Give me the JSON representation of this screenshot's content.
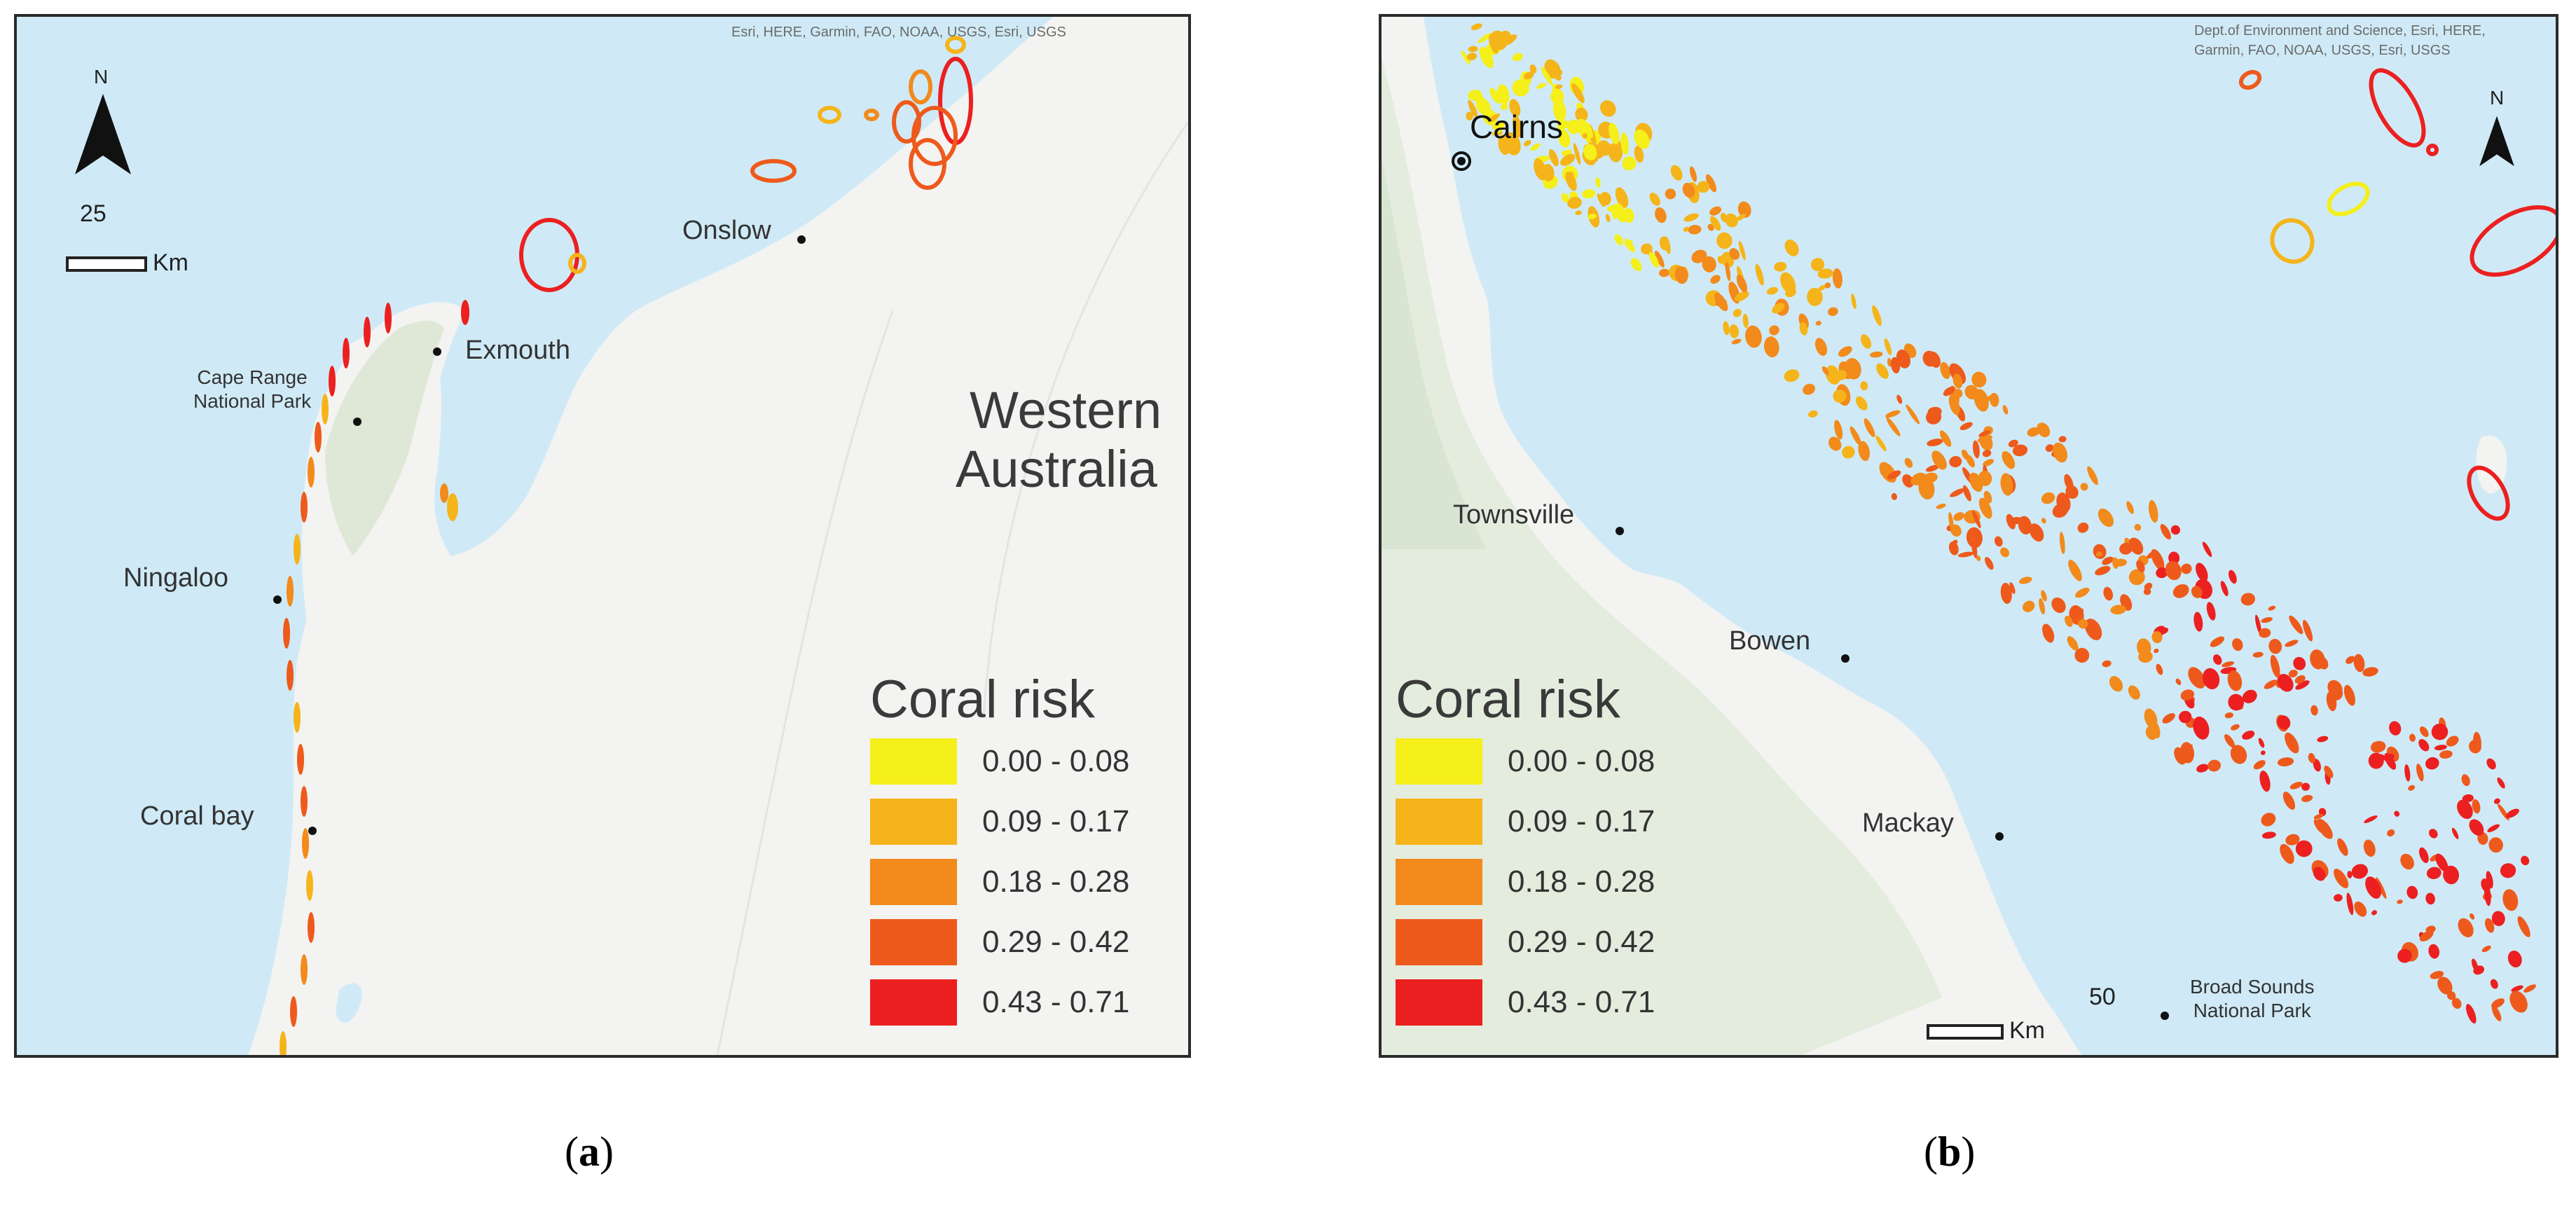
{
  "panel_a": {
    "attribution": "Esri, HERE, Garmin, FAO, NOAA, USGS, Esri, USGS",
    "north_label": "N",
    "scale": {
      "value": "25",
      "unit": "Km"
    },
    "places": {
      "onslow": "Onslow",
      "exmouth": "Exmouth",
      "cape_range_1": "Cape Range",
      "cape_range_2": "National Park",
      "ningaloo": "Ningaloo",
      "coral_bay": "Coral bay",
      "region_1": "Western",
      "region_2": "Australia"
    },
    "legend_title": "Coral risk",
    "caption_letter": "a"
  },
  "panel_b": {
    "attribution_1": "Dept.of Environment and Science, Esri, HERE,",
    "attribution_2": "Garmin, FAO, NOAA, USGS, Esri, USGS",
    "north_label": "N",
    "scale": {
      "value": "50",
      "unit": "Km"
    },
    "places": {
      "cairns": "Cairns",
      "townsville": "Townsville",
      "bowen": "Bowen",
      "mackay": "Mackay",
      "broad_sounds_1": "Broad Sounds",
      "broad_sounds_2": "National Park"
    },
    "legend_title": "Coral risk",
    "caption_letter": "b"
  },
  "legend_classes": [
    {
      "label": "0.00 - 0.08",
      "color": "#f5ef1a"
    },
    {
      "label": "0.09 - 0.17",
      "color": "#f5b41a"
    },
    {
      "label": "0.18 - 0.28",
      "color": "#f28a1c"
    },
    {
      "label": "0.29 - 0.42",
      "color": "#ee5a1c"
    },
    {
      "label": "0.43 - 0.71",
      "color": "#ec2020"
    }
  ],
  "colors": {
    "water": "#cfeaf6",
    "land": "#f3f3f1",
    "park": "#dfe8d6"
  }
}
